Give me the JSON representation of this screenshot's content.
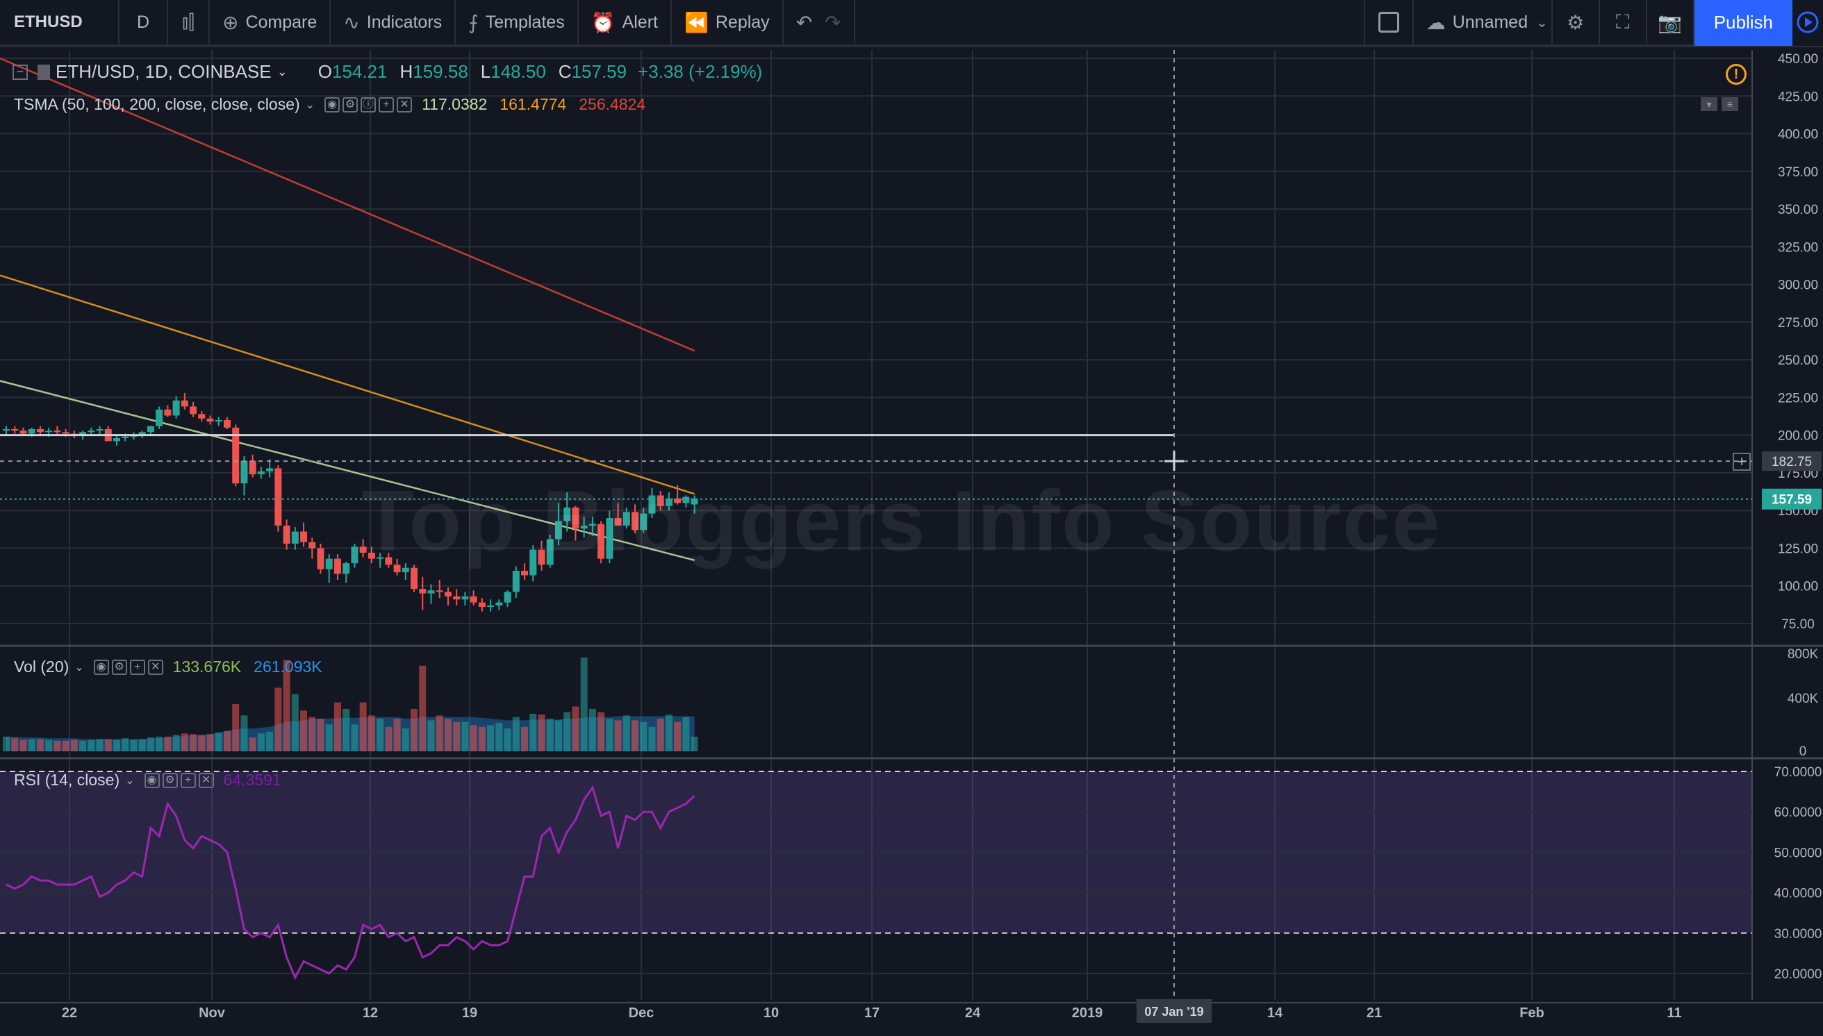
{
  "toolbar": {
    "symbol": "ETHUSD",
    "interval": "D",
    "compare_label": "Compare",
    "indicators_label": "Indicators",
    "templates_label": "Templates",
    "alert_label": "Alert",
    "replay_label": "Replay",
    "layout_name": "Unnamed",
    "publish_label": "Publish"
  },
  "legend": {
    "symbol_info": "ETH/USD, 1D, COINBASE",
    "open_label": "O",
    "open": "154.21",
    "high_label": "H",
    "high": "159.58",
    "low_label": "L",
    "low": "148.50",
    "close_label": "C",
    "close": "157.59",
    "change": "+3.38 (+2.19%)"
  },
  "tsma": {
    "name": "TSMA (50, 100, 200, close, close, close)",
    "v1": "117.0382",
    "v2": "161.4774",
    "v3": "256.4824",
    "c1": "#c5e1a5",
    "c2": "#f7a21b",
    "c3": "#e0443a"
  },
  "volume": {
    "name": "Vol (20)",
    "v1": "133.676K",
    "v2": "261.093K"
  },
  "rsi": {
    "name": "RSI (14, close)",
    "value": "64.3591"
  },
  "watermark": "Top Bloggers Info Source",
  "price_axis": {
    "labels": [
      "450.00",
      "425.00",
      "400.00",
      "375.00",
      "350.00",
      "325.00",
      "300.00",
      "275.00",
      "250.00",
      "225.00",
      "200.00",
      "175.00",
      "150.00",
      "125.00",
      "100.00",
      "75.00"
    ],
    "crosshair_price": "182.75",
    "last_price": "157.59"
  },
  "volume_axis": {
    "labels": [
      "800K",
      "400K",
      "0"
    ]
  },
  "rsi_axis": {
    "labels": [
      "70.0000",
      "60.0000",
      "50.0000",
      "40.0000",
      "30.0000",
      "20.0000"
    ]
  },
  "time_axis": {
    "labels": [
      "22",
      "Nov",
      "12",
      "19",
      "Dec",
      "10",
      "17",
      "24",
      "2019",
      "14",
      "21",
      "Feb",
      "11"
    ],
    "crosshair_date": "07 Jan '19"
  },
  "colors": {
    "up": "#26a69a",
    "down": "#ef5350",
    "bg": "#131722",
    "grid": "#2a2e39",
    "rsi": "#9c27b0"
  },
  "chart_data": {
    "type": "candlestick",
    "symbol": "ETH/USD",
    "interval": "1D",
    "ylim": [
      75,
      450
    ],
    "candles_ohlc": [
      [
        203,
        206,
        200,
        204
      ],
      [
        204,
        206,
        201,
        203
      ],
      [
        203,
        205,
        200,
        201
      ],
      [
        201,
        205,
        199,
        204
      ],
      [
        204,
        206,
        200,
        202
      ],
      [
        202,
        205,
        199,
        203
      ],
      [
        203,
        206,
        200,
        202
      ],
      [
        202,
        204,
        199,
        201
      ],
      [
        201,
        203,
        198,
        200
      ],
      [
        200,
        203,
        197,
        202
      ],
      [
        202,
        205,
        200,
        203
      ],
      [
        203,
        206,
        200,
        204
      ],
      [
        204,
        206,
        199,
        196
      ],
      [
        196,
        200,
        193,
        198
      ],
      [
        198,
        201,
        196,
        199
      ],
      [
        199,
        202,
        197,
        200
      ],
      [
        200,
        203,
        198,
        202
      ],
      [
        202,
        205,
        200,
        206
      ],
      [
        206,
        219,
        204,
        217
      ],
      [
        217,
        220,
        212,
        213
      ],
      [
        213,
        226,
        211,
        223
      ],
      [
        223,
        228,
        217,
        219
      ],
      [
        219,
        222,
        212,
        214
      ],
      [
        214,
        216,
        209,
        211
      ],
      [
        211,
        213,
        207,
        209
      ],
      [
        209,
        212,
        206,
        210
      ],
      [
        210,
        212,
        204,
        205
      ],
      [
        205,
        207,
        166,
        168
      ],
      [
        168,
        186,
        160,
        183
      ],
      [
        183,
        187,
        172,
        174
      ],
      [
        174,
        179,
        171,
        176
      ],
      [
        176,
        184,
        172,
        178
      ],
      [
        178,
        180,
        136,
        140
      ],
      [
        140,
        144,
        124,
        128
      ],
      [
        128,
        139,
        124,
        136
      ],
      [
        136,
        142,
        126,
        129
      ],
      [
        129,
        132,
        118,
        125
      ],
      [
        125,
        128,
        108,
        111
      ],
      [
        111,
        121,
        102,
        118
      ],
      [
        118,
        121,
        104,
        108
      ],
      [
        108,
        116,
        102,
        115
      ],
      [
        115,
        128,
        112,
        126
      ],
      [
        126,
        131,
        119,
        122
      ],
      [
        122,
        126,
        115,
        118
      ],
      [
        118,
        122,
        112,
        119
      ],
      [
        119,
        122,
        112,
        114
      ],
      [
        114,
        118,
        107,
        109
      ],
      [
        109,
        115,
        104,
        112
      ],
      [
        112,
        114,
        96,
        98
      ],
      [
        98,
        106,
        84,
        95
      ],
      [
        95,
        101,
        88,
        97
      ],
      [
        97,
        104,
        92,
        96
      ],
      [
        96,
        99,
        87,
        93
      ],
      [
        93,
        98,
        87,
        91
      ],
      [
        91,
        96,
        87,
        93
      ],
      [
        93,
        97,
        87,
        89
      ],
      [
        89,
        92,
        83,
        86
      ],
      [
        86,
        91,
        83,
        87
      ],
      [
        87,
        91,
        84,
        89
      ],
      [
        89,
        97,
        86,
        96
      ],
      [
        96,
        113,
        92,
        110
      ],
      [
        110,
        115,
        104,
        107
      ],
      [
        107,
        127,
        103,
        124
      ],
      [
        124,
        130,
        110,
        114
      ],
      [
        114,
        134,
        112,
        131
      ],
      [
        131,
        155,
        127,
        143
      ],
      [
        143,
        162,
        136,
        152
      ],
      [
        152,
        153,
        130,
        138
      ],
      [
        138,
        146,
        132,
        140
      ],
      [
        140,
        146,
        133,
        141
      ],
      [
        141,
        143,
        115,
        118
      ],
      [
        118,
        150,
        115,
        145
      ],
      [
        145,
        155,
        140,
        140
      ],
      [
        140,
        152,
        138,
        149
      ],
      [
        149,
        154,
        135,
        137
      ],
      [
        137,
        152,
        135,
        148
      ],
      [
        148,
        165,
        145,
        160
      ],
      [
        160,
        163,
        150,
        153
      ],
      [
        153,
        162,
        150,
        158
      ],
      [
        158,
        167,
        154,
        155
      ],
      [
        155,
        160,
        152,
        159
      ],
      [
        154,
        160,
        148,
        158
      ]
    ],
    "series": [
      {
        "name": "TSMA 50",
        "color": "#c5e1a5",
        "from": [
          0,
          236
        ],
        "to": [
          81,
          117
        ]
      },
      {
        "name": "TSMA 100",
        "color": "#f7a21b",
        "from": [
          0,
          306
        ],
        "to": [
          81,
          161
        ]
      },
      {
        "name": "TSMA 200",
        "color": "#e0443a",
        "from": [
          0,
          450
        ],
        "to": [
          81,
          256
        ]
      }
    ],
    "horizontal_line": 200,
    "rsi": [
      42,
      41,
      42,
      44,
      43,
      43,
      42,
      42,
      42,
      43,
      44,
      39,
      40,
      42,
      43,
      45,
      44,
      56,
      54,
      62,
      59,
      53,
      51,
      54,
      53,
      52,
      50,
      41,
      31,
      29,
      30,
      29,
      32,
      24,
      19,
      23,
      22,
      21,
      20,
      22,
      21,
      24,
      32,
      31,
      32,
      29,
      30,
      28,
      29,
      24,
      25,
      27,
      27,
      29,
      28,
      26,
      28,
      27,
      27,
      28,
      36,
      44,
      44,
      54,
      56,
      50,
      55,
      58,
      63,
      66,
      59,
      60,
      51,
      59,
      58,
      60,
      60,
      56,
      60,
      61,
      62,
      64
    ],
    "volume": [
      18,
      16,
      14,
      15,
      15,
      14,
      13,
      13,
      14,
      13,
      14,
      15,
      15,
      14,
      16,
      14,
      15,
      17,
      18,
      18,
      20,
      22,
      21,
      20,
      21,
      23,
      25,
      58,
      44,
      17,
      22,
      24,
      78,
      112,
      70,
      50,
      42,
      40,
      33,
      60,
      52,
      33,
      60,
      44,
      40,
      30,
      40,
      28,
      52,
      105,
      38,
      44,
      40,
      36,
      36,
      32,
      30,
      32,
      35,
      28,
      42,
      30,
      46,
      45,
      40,
      38,
      48,
      55,
      115,
      52,
      48,
      40,
      38,
      44,
      38,
      36,
      30,
      40,
      45,
      36,
      42,
      18
    ],
    "volume_ma": [
      18,
      18,
      17,
      17,
      17,
      16,
      16,
      16,
      16,
      15,
      15,
      15,
      15,
      15,
      15,
      15,
      15,
      16,
      16,
      17,
      18,
      19,
      20,
      20,
      21,
      23,
      25,
      27,
      28,
      28,
      29,
      30,
      33,
      36,
      37,
      38,
      40,
      40,
      40,
      41,
      41,
      41,
      42,
      42,
      42,
      42,
      42,
      40,
      40,
      42,
      42,
      42,
      42,
      42,
      42,
      42,
      41,
      40,
      39,
      38,
      38,
      38,
      39,
      39,
      39,
      39,
      40,
      40,
      41,
      42,
      42,
      42,
      43,
      43,
      43,
      43,
      43,
      43,
      43,
      43,
      43,
      43
    ]
  }
}
